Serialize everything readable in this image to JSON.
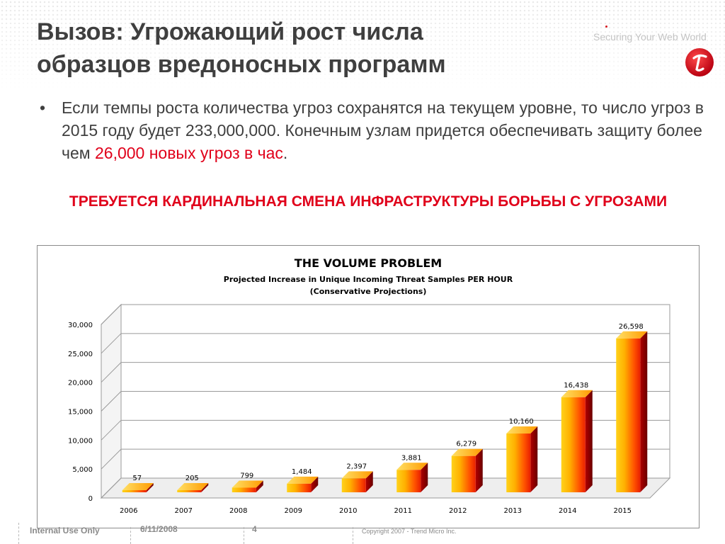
{
  "slide": {
    "title_line1": "Вызов: Угрожающий рост числа",
    "title_line2": "образцов вредоносных программ",
    "tagline": "Securing Your Web World",
    "bullet_marker": "•",
    "bullet_text_start": "Если темпы роста количества угроз сохранятся на текущем уровне, то число угроз в 2015 году будет 233,000,000. Конечным узлам придется обеспечивать защиту более чем ",
    "bullet_text_highlight": "26,000 новых угроз в час",
    "bullet_text_end": ".",
    "warning": "ТРЕБУЕТСЯ КАРДИНАЛЬНАЯ СМЕНА ИНФРАСТРУКТУРЫ  БОРЬБЫ С УГРОЗАМИ"
  },
  "footer": {
    "classification": "Internal Use Only",
    "date": "6/11/2008",
    "page": "4",
    "copyright": "Copyright 2007 - Trend Micro Inc."
  },
  "colors": {
    "title": "#3f3f3f",
    "accent_red": "#e0001a",
    "bar_top": "#ffd21a",
    "bar_mid": "#ff5a00",
    "bar_side": "#8a0000"
  },
  "icons": {
    "logo": "trend-micro-logo-icon"
  },
  "chart_data": {
    "type": "bar",
    "title": "THE VOLUME PROBLEM",
    "subtitle1": "Projected Increase in Unique Incoming Threat Samples PER HOUR",
    "subtitle2": "(Conservative Projections)",
    "categories": [
      "2006",
      "2007",
      "2008",
      "2009",
      "2010",
      "2011",
      "2012",
      "2013",
      "2014",
      "2015"
    ],
    "values": [
      57,
      205,
      799,
      1484,
      2397,
      3881,
      6279,
      10160,
      16438,
      26598
    ],
    "value_labels": [
      "57",
      "205",
      "799",
      "1,484",
      "2,397",
      "3,881",
      "6,279",
      "10,160",
      "16,438",
      "26,598"
    ],
    "y_ticks": [
      0,
      5000,
      10000,
      15000,
      20000,
      25000,
      30000
    ],
    "y_tick_labels": [
      "0",
      "5,000",
      "10,000",
      "15,000",
      "20,000",
      "25,000",
      "30,000"
    ],
    "ylim": [
      0,
      30000
    ],
    "grid": true,
    "style": "3d-column",
    "legend": "none"
  }
}
